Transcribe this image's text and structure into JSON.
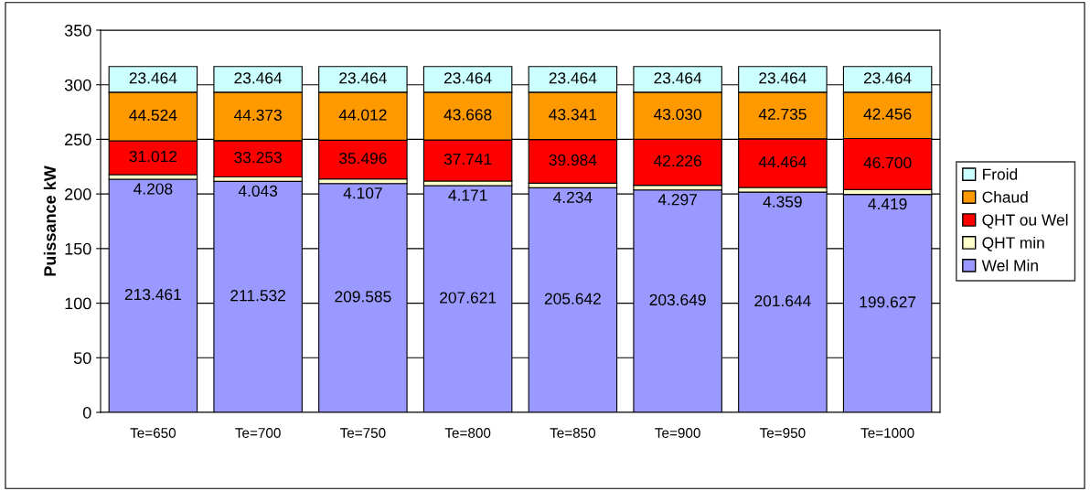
{
  "chart_data": {
    "type": "bar",
    "stacked": true,
    "ylabel": "Puissance kW",
    "categories": [
      "Te=650",
      "Te=700",
      "Te=750",
      "Te=800",
      "Te=850",
      "Te=900",
      "Te=950",
      "Te=1000"
    ],
    "series": [
      {
        "name": "Wel Min",
        "color": "#9999ff",
        "values": [
          213.461,
          211.532,
          209.585,
          207.621,
          205.642,
          203.649,
          201.644,
          199.627
        ],
        "value_labels": [
          "213.461",
          "211.532",
          "209.585",
          "207.621",
          "205.642",
          "203.649",
          "201.644",
          "199.627"
        ]
      },
      {
        "name": "QHT min",
        "color": "#ffffcc",
        "values": [
          4.208,
          4.043,
          4.107,
          4.171,
          4.234,
          4.297,
          4.359,
          4.419
        ],
        "value_labels": [
          "4.208",
          "4.043",
          "4.107",
          "4.171",
          "4.234",
          "4.297",
          "4.359",
          "4.419"
        ]
      },
      {
        "name": "QHT ou Wel",
        "color": "#ff0000",
        "values": [
          31.012,
          33.253,
          35.496,
          37.741,
          39.984,
          42.226,
          44.464,
          46.7
        ],
        "value_labels": [
          "31.012",
          "33.253",
          "35.496",
          "37.741",
          "39.984",
          "42.226",
          "44.464",
          "46.700"
        ]
      },
      {
        "name": "Chaud",
        "color": "#ff9900",
        "values": [
          44.524,
          44.373,
          44.012,
          43.668,
          43.341,
          43.03,
          42.735,
          42.456
        ],
        "value_labels": [
          "44.524",
          "44.373",
          "44.012",
          "43.668",
          "43.341",
          "43.030",
          "42.735",
          "42.456"
        ]
      },
      {
        "name": "Froid",
        "color": "#ccffff",
        "values": [
          23.464,
          23.464,
          23.464,
          23.464,
          23.464,
          23.464,
          23.464,
          23.464
        ],
        "value_labels": [
          "23.464",
          "23.464",
          "23.464",
          "23.464",
          "23.464",
          "23.464",
          "23.464",
          "23.464"
        ]
      }
    ],
    "ylim": [
      0,
      350
    ],
    "yticks": [
      0,
      50,
      100,
      150,
      200,
      250,
      300,
      350
    ],
    "grid": "y",
    "legend": "right"
  }
}
